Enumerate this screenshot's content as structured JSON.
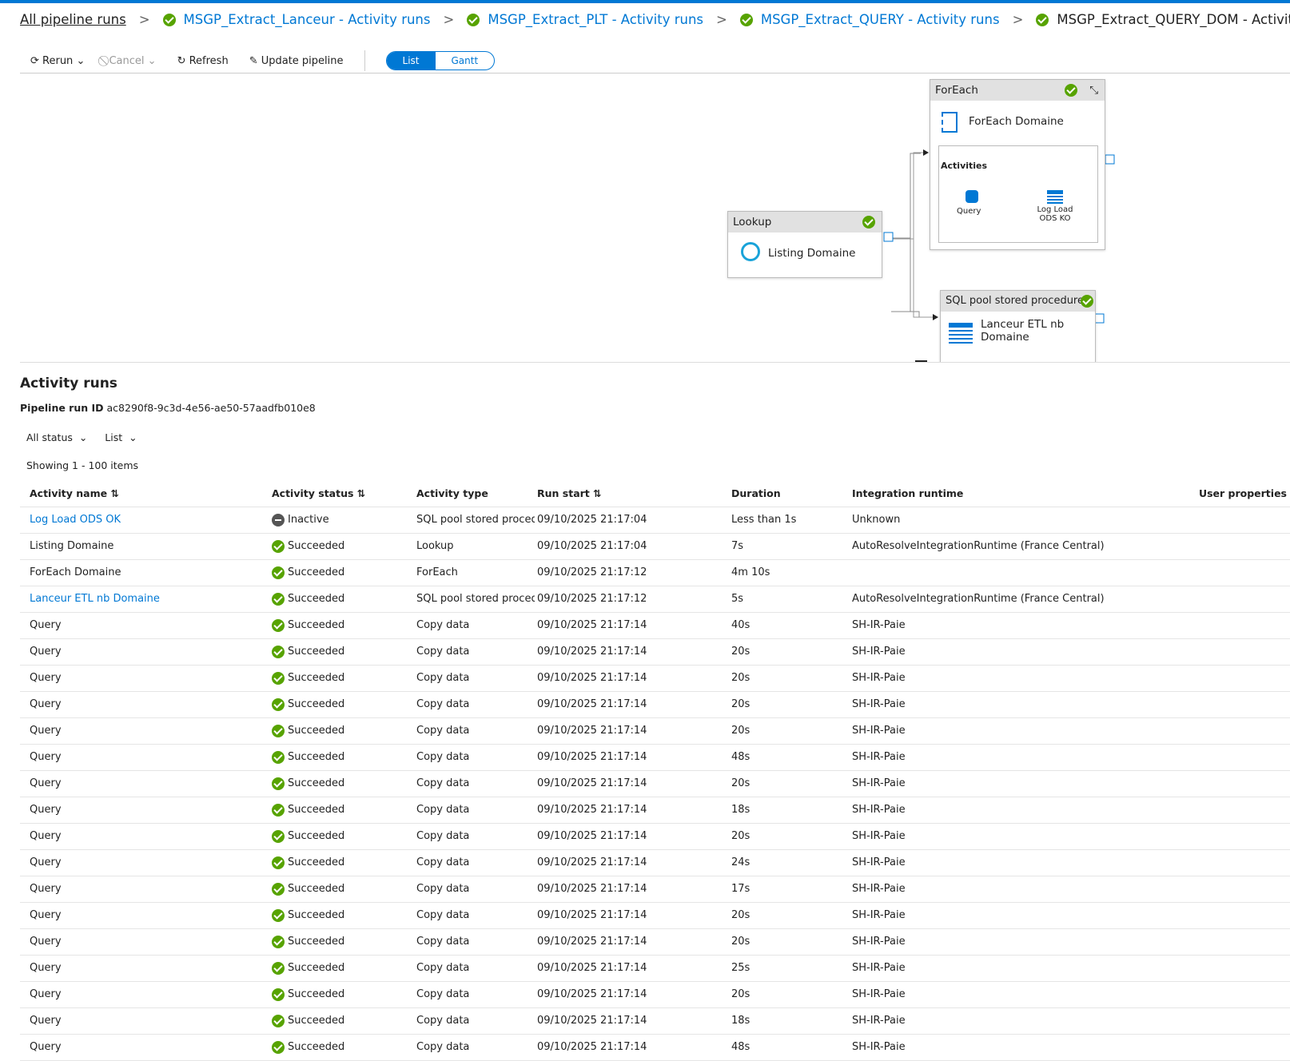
{
  "breadcrumb": [
    "All pipeline runs",
    "MSGP_Extract_Lanceur - Activity runs",
    "MSGP_Extract_PLT - Activity runs",
    "MSGP_Extract_QUERY - Activity runs",
    "MSGP_Extract_QUERY_DOM - Activity runs"
  ],
  "toolbar": {
    "rerun": "Rerun",
    "cancel": "Cancel",
    "refresh": "Refresh",
    "update": "Update pipeline",
    "list": "List",
    "gantt": "Gantt"
  },
  "diagram": {
    "foreach": {
      "type": "ForEach",
      "name": "ForEach Domaine",
      "activities_label": "Activities",
      "inner": [
        "Query",
        "Log Load ODS KO"
      ]
    },
    "lookup": {
      "type": "Lookup",
      "name": "Listing Domaine"
    },
    "sql": {
      "type": "SQL pool stored procedure",
      "name": "Lanceur ETL nb Domaine"
    }
  },
  "activity_runs": {
    "title": "Activity runs",
    "run_id_label": "Pipeline run ID",
    "run_id": "ac8290f8-9c3d-4e56-ae50-57aadfb010e8",
    "filters": [
      "All status",
      "List"
    ],
    "showing": "Showing 1 - 100 items",
    "columns": [
      "Activity name",
      "Activity status",
      "Activity type",
      "Run start",
      "Duration",
      "Integration runtime",
      "User properties"
    ],
    "rows": [
      {
        "name": "Log Load ODS OK",
        "link": true,
        "status": "Inactive",
        "type": "SQL pool stored procedure",
        "start": "09/10/2025 21:17:04",
        "duration": "Less than 1s",
        "runtime": "Unknown"
      },
      {
        "name": "Listing Domaine",
        "status": "Succeeded",
        "type": "Lookup",
        "start": "09/10/2025 21:17:04",
        "duration": "7s",
        "runtime": "AutoResolveIntegrationRuntime (France Central)"
      },
      {
        "name": "ForEach Domaine",
        "status": "Succeeded",
        "type": "ForEach",
        "start": "09/10/2025 21:17:12",
        "duration": "4m 10s"
      },
      {
        "name": "Lanceur ETL nb Domaine",
        "link": true,
        "status": "Succeeded",
        "type": "SQL pool stored procedure",
        "start": "09/10/2025 21:17:12",
        "duration": "5s",
        "runtime": "AutoResolveIntegrationRuntime (France Central)"
      },
      {
        "name": "Query",
        "status": "Succeeded",
        "type": "Copy data",
        "start": "09/10/2025 21:17:14",
        "duration": "40s",
        "runtime": "SH-IR-Paie"
      },
      {
        "name": "Query",
        "status": "Succeeded",
        "type": "Copy data",
        "start": "09/10/2025 21:17:14",
        "duration": "20s",
        "runtime": "SH-IR-Paie"
      },
      {
        "name": "Query",
        "status": "Succeeded",
        "type": "Copy data",
        "start": "09/10/2025 21:17:14",
        "duration": "20s",
        "runtime": "SH-IR-Paie"
      },
      {
        "name": "Query",
        "status": "Succeeded",
        "type": "Copy data",
        "start": "09/10/2025 21:17:14",
        "duration": "20s",
        "runtime": "SH-IR-Paie"
      },
      {
        "name": "Query",
        "status": "Succeeded",
        "type": "Copy data",
        "start": "09/10/2025 21:17:14",
        "duration": "20s",
        "runtime": "SH-IR-Paie"
      },
      {
        "name": "Query",
        "status": "Succeeded",
        "type": "Copy data",
        "start": "09/10/2025 21:17:14",
        "duration": "48s",
        "runtime": "SH-IR-Paie"
      },
      {
        "name": "Query",
        "status": "Succeeded",
        "type": "Copy data",
        "start": "09/10/2025 21:17:14",
        "duration": "20s",
        "runtime": "SH-IR-Paie"
      },
      {
        "name": "Query",
        "status": "Succeeded",
        "type": "Copy data",
        "start": "09/10/2025 21:17:14",
        "duration": "18s",
        "runtime": "SH-IR-Paie"
      },
      {
        "name": "Query",
        "status": "Succeeded",
        "type": "Copy data",
        "start": "09/10/2025 21:17:14",
        "duration": "20s",
        "runtime": "SH-IR-Paie"
      },
      {
        "name": "Query",
        "status": "Succeeded",
        "type": "Copy data",
        "start": "09/10/2025 21:17:14",
        "duration": "24s",
        "runtime": "SH-IR-Paie"
      },
      {
        "name": "Query",
        "status": "Succeeded",
        "type": "Copy data",
        "start": "09/10/2025 21:17:14",
        "duration": "17s",
        "runtime": "SH-IR-Paie"
      },
      {
        "name": "Query",
        "status": "Succeeded",
        "type": "Copy data",
        "start": "09/10/2025 21:17:14",
        "duration": "20s",
        "runtime": "SH-IR-Paie"
      },
      {
        "name": "Query",
        "status": "Succeeded",
        "type": "Copy data",
        "start": "09/10/2025 21:17:14",
        "duration": "20s",
        "runtime": "SH-IR-Paie"
      },
      {
        "name": "Query",
        "status": "Succeeded",
        "type": "Copy data",
        "start": "09/10/2025 21:17:14",
        "duration": "25s",
        "runtime": "SH-IR-Paie"
      },
      {
        "name": "Query",
        "status": "Succeeded",
        "type": "Copy data",
        "start": "09/10/2025 21:17:14",
        "duration": "20s",
        "runtime": "SH-IR-Paie"
      },
      {
        "name": "Query",
        "status": "Succeeded",
        "type": "Copy data",
        "start": "09/10/2025 21:17:14",
        "duration": "18s",
        "runtime": "SH-IR-Paie"
      },
      {
        "name": "Query",
        "status": "Succeeded",
        "type": "Copy data",
        "start": "09/10/2025 21:17:14",
        "duration": "48s",
        "runtime": "SH-IR-Paie"
      }
    ]
  }
}
